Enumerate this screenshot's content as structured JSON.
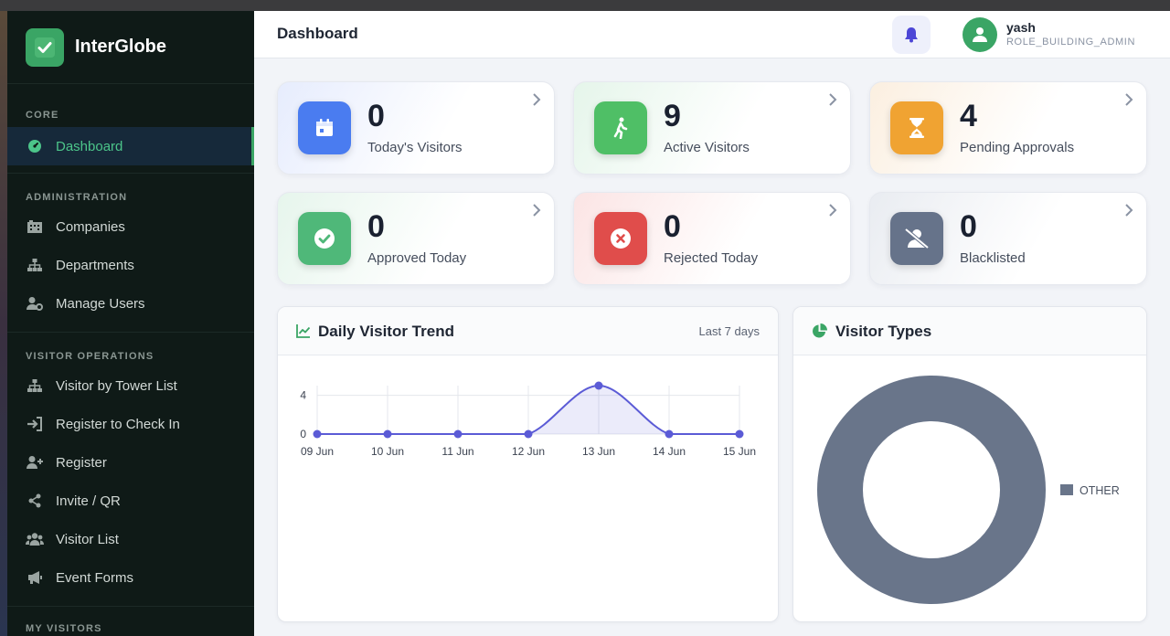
{
  "brand": {
    "name": "InterGlobe"
  },
  "sidebar": {
    "sections": {
      "core": "CORE",
      "administration": "ADMINISTRATION",
      "visitor_operations": "VISITOR OPERATIONS",
      "my_visitors": "MY VISITORS"
    },
    "items": {
      "dashboard": "Dashboard",
      "companies": "Companies",
      "departments": "Departments",
      "manage_users": "Manage Users",
      "visitor_by_tower": "Visitor by Tower List",
      "register_check_in": "Register to Check In",
      "register": "Register",
      "invite_qr": "Invite / QR",
      "visitor_list": "Visitor List",
      "event_forms": "Event Forms"
    }
  },
  "header": {
    "title": "Dashboard",
    "user": {
      "name": "yash",
      "role": "ROLE_BUILDING_ADMIN"
    }
  },
  "stats": {
    "todays_visitors": {
      "value": "0",
      "label": "Today's Visitors"
    },
    "active_visitors": {
      "value": "9",
      "label": "Active Visitors"
    },
    "pending_approvals": {
      "value": "4",
      "label": "Pending Approvals"
    },
    "approved_today": {
      "value": "0",
      "label": "Approved Today"
    },
    "rejected_today": {
      "value": "0",
      "label": "Rejected Today"
    },
    "blacklisted": {
      "value": "0",
      "label": "Blacklisted"
    }
  },
  "trend": {
    "title": "Daily Visitor Trend",
    "range": "Last 7 days"
  },
  "types": {
    "title": "Visitor Types"
  },
  "colors": {
    "accent": "#3aa565",
    "sidebar_bg": "#0f1a17",
    "line": "#5b5bd6",
    "donut": "#69758a"
  },
  "chart_data": [
    {
      "type": "line",
      "title": "Daily Visitor Trend",
      "x": [
        "09 Jun",
        "10 Jun",
        "11 Jun",
        "12 Jun",
        "13 Jun",
        "14 Jun",
        "15 Jun"
      ],
      "series": [
        {
          "values": [
            0,
            0,
            0,
            0,
            5,
            0,
            0
          ]
        }
      ],
      "yticks": [
        "4",
        "0"
      ],
      "ylim": [
        0,
        5
      ],
      "grid": true
    },
    {
      "type": "pie",
      "title": "Visitor Types",
      "categories": [
        "OTHER"
      ],
      "values": [
        1
      ],
      "legend": "right"
    }
  ]
}
